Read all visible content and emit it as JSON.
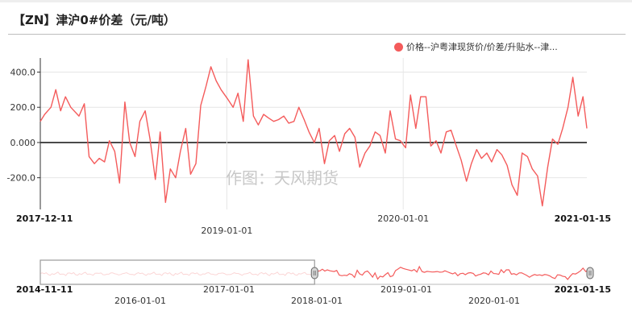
{
  "title": "【ZN】津沪0#价差（元/吨）",
  "legend": {
    "label": "价格--沪粤津现货价/价差/升贴水--津...",
    "color": "#f45b5b"
  },
  "watermark": "作图：天风期货",
  "chart_data": {
    "type": "line",
    "title": "【ZN】津沪0#价差（元/吨）",
    "xlabel": "",
    "ylabel": "",
    "x_range": [
      "2017-12-11",
      "2021-01-15"
    ],
    "ylim": [
      -380,
      480
    ],
    "y_ticks": [
      "400.0",
      "200.0",
      "0.000",
      "-200.0"
    ],
    "y_tick_values": [
      400,
      200,
      0,
      -200
    ],
    "x_tick_labels": [
      "2017-12-11",
      "2019-01-01",
      "2020-01-01",
      "2021-01-15"
    ],
    "grid": true,
    "legend_position": "top-right",
    "series": [
      {
        "name": "价格--沪粤津现货价/价差/升贴水--津...",
        "color": "#f45b5b",
        "points": [
          [
            "2017-12-11",
            120
          ],
          [
            "2017-12-20",
            160
          ],
          [
            "2018-01-02",
            200
          ],
          [
            "2018-01-12",
            300
          ],
          [
            "2018-01-22",
            180
          ],
          [
            "2018-02-01",
            260
          ],
          [
            "2018-02-12",
            200
          ],
          [
            "2018-03-01",
            150
          ],
          [
            "2018-03-12",
            220
          ],
          [
            "2018-03-22",
            -80
          ],
          [
            "2018-04-02",
            -120
          ],
          [
            "2018-04-12",
            -90
          ],
          [
            "2018-04-23",
            -110
          ],
          [
            "2018-05-03",
            10
          ],
          [
            "2018-05-14",
            -50
          ],
          [
            "2018-05-24",
            -230
          ],
          [
            "2018-06-04",
            230
          ],
          [
            "2018-06-14",
            0
          ],
          [
            "2018-06-25",
            -80
          ],
          [
            "2018-07-05",
            120
          ],
          [
            "2018-07-16",
            180
          ],
          [
            "2018-07-26",
            20
          ],
          [
            "2018-08-06",
            -210
          ],
          [
            "2018-08-16",
            60
          ],
          [
            "2018-08-27",
            -340
          ],
          [
            "2018-09-06",
            -150
          ],
          [
            "2018-09-17",
            -200
          ],
          [
            "2018-09-27",
            -50
          ],
          [
            "2018-10-08",
            80
          ],
          [
            "2018-10-18",
            -180
          ],
          [
            "2018-10-29",
            -120
          ],
          [
            "2018-11-08",
            210
          ],
          [
            "2018-11-19",
            320
          ],
          [
            "2018-11-29",
            430
          ],
          [
            "2018-12-10",
            350
          ],
          [
            "2018-12-20",
            300
          ],
          [
            "2019-01-02",
            250
          ],
          [
            "2019-01-14",
            200
          ],
          [
            "2019-01-24",
            280
          ],
          [
            "2019-02-04",
            120
          ],
          [
            "2019-02-14",
            470
          ],
          [
            "2019-02-25",
            150
          ],
          [
            "2019-03-07",
            100
          ],
          [
            "2019-03-18",
            160
          ],
          [
            "2019-03-28",
            140
          ],
          [
            "2019-04-08",
            120
          ],
          [
            "2019-04-18",
            130
          ],
          [
            "2019-04-29",
            150
          ],
          [
            "2019-05-09",
            110
          ],
          [
            "2019-05-20",
            120
          ],
          [
            "2019-05-30",
            200
          ],
          [
            "2019-06-10",
            130
          ],
          [
            "2019-06-20",
            60
          ],
          [
            "2019-07-01",
            0
          ],
          [
            "2019-07-11",
            80
          ],
          [
            "2019-07-22",
            -120
          ],
          [
            "2019-08-01",
            10
          ],
          [
            "2019-08-12",
            40
          ],
          [
            "2019-08-22",
            -50
          ],
          [
            "2019-09-02",
            50
          ],
          [
            "2019-09-12",
            80
          ],
          [
            "2019-09-23",
            30
          ],
          [
            "2019-10-03",
            -140
          ],
          [
            "2019-10-14",
            -60
          ],
          [
            "2019-10-24",
            -20
          ],
          [
            "2019-11-04",
            60
          ],
          [
            "2019-11-14",
            40
          ],
          [
            "2019-11-25",
            -60
          ],
          [
            "2019-12-05",
            180
          ],
          [
            "2019-12-16",
            20
          ],
          [
            "2019-12-26",
            10
          ],
          [
            "2020-01-06",
            -30
          ],
          [
            "2020-01-16",
            270
          ],
          [
            "2020-01-27",
            80
          ],
          [
            "2020-02-06",
            260
          ],
          [
            "2020-02-17",
            260
          ],
          [
            "2020-02-27",
            -20
          ],
          [
            "2020-03-09",
            10
          ],
          [
            "2020-03-19",
            -60
          ],
          [
            "2020-03-30",
            60
          ],
          [
            "2020-04-09",
            70
          ],
          [
            "2020-04-20",
            -20
          ],
          [
            "2020-04-30",
            -100
          ],
          [
            "2020-05-11",
            -220
          ],
          [
            "2020-05-21",
            -120
          ],
          [
            "2020-06-01",
            -40
          ],
          [
            "2020-06-11",
            -90
          ],
          [
            "2020-06-22",
            -60
          ],
          [
            "2020-07-02",
            -110
          ],
          [
            "2020-07-13",
            -40
          ],
          [
            "2020-07-23",
            -70
          ],
          [
            "2020-08-03",
            -130
          ],
          [
            "2020-08-13",
            -240
          ],
          [
            "2020-08-24",
            -300
          ],
          [
            "2020-09-03",
            -60
          ],
          [
            "2020-09-14",
            -80
          ],
          [
            "2020-09-24",
            -150
          ],
          [
            "2020-10-05",
            -190
          ],
          [
            "2020-10-15",
            -360
          ],
          [
            "2020-10-26",
            -140
          ],
          [
            "2020-11-05",
            20
          ],
          [
            "2020-11-16",
            -10
          ],
          [
            "2020-11-26",
            80
          ],
          [
            "2020-12-07",
            200
          ],
          [
            "2020-12-17",
            370
          ],
          [
            "2020-12-28",
            150
          ],
          [
            "2021-01-07",
            260
          ],
          [
            "2021-01-15",
            80
          ]
        ]
      }
    ],
    "navigator": {
      "x_range": [
        "2014-11-11",
        "2021-01-15"
      ],
      "x_tick_labels": [
        "2014-11-11",
        "2016-01-01",
        "2017-01-01",
        "2018-01-01",
        "2019-01-01",
        "2020-01-01",
        "2021-01-15"
      ],
      "selected_range": [
        "2017-12-11",
        "2021-01-15"
      ]
    }
  }
}
